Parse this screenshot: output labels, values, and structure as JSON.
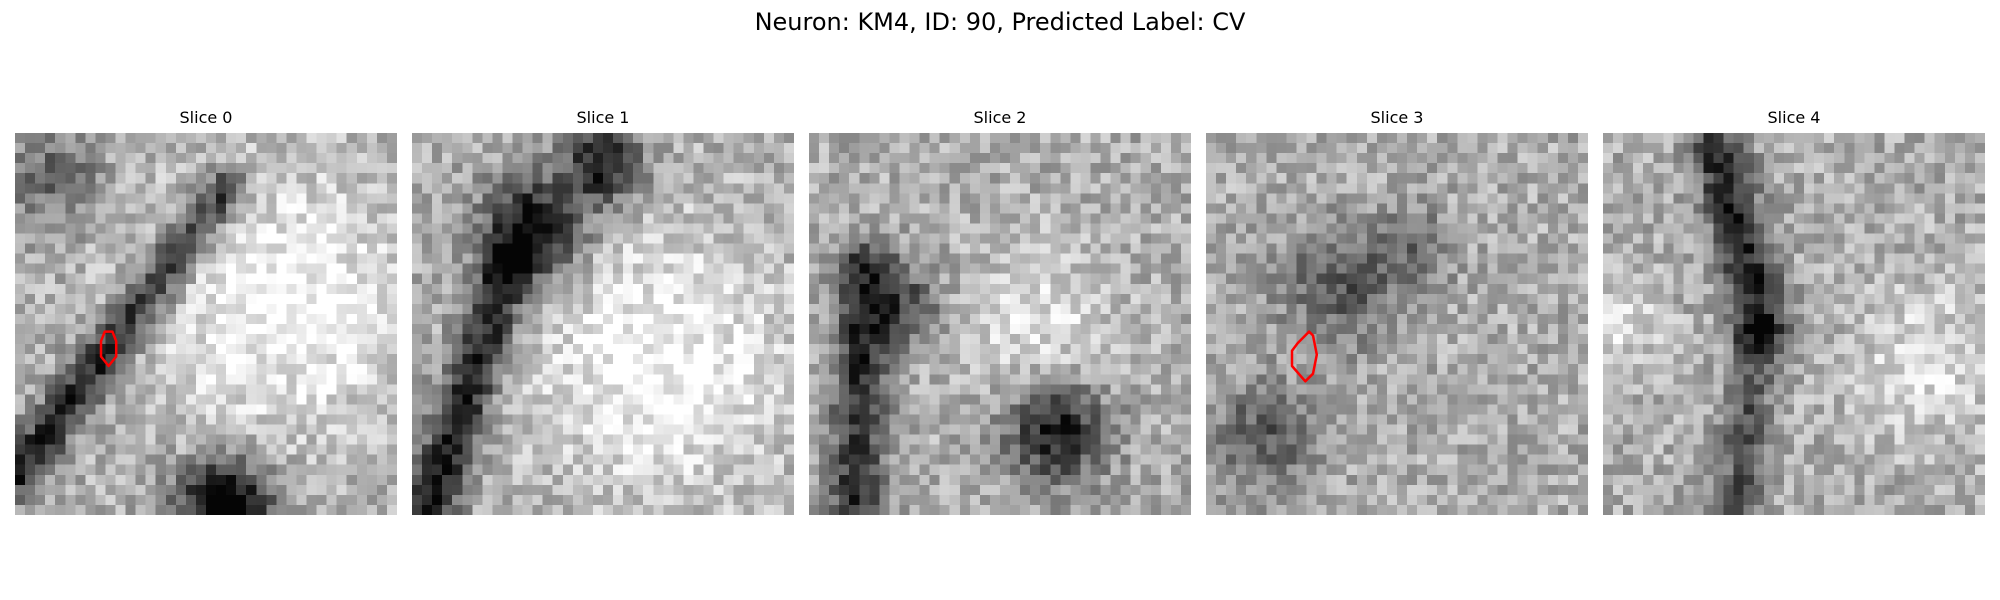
{
  "figure": {
    "title": "Neuron: KM4, ID: 90, Predicted Label: CV"
  },
  "slices": [
    {
      "title": "Slice 0",
      "seed": 11,
      "dark_features": [
        {
          "kind": "line",
          "p1": [
            0.0,
            0.9
          ],
          "p2": [
            0.55,
            0.15
          ],
          "width": 0.06,
          "strength": 0.55
        },
        {
          "kind": "blob",
          "center": [
            0.55,
            0.98
          ],
          "radius": 0.12,
          "strength": 0.85
        },
        {
          "kind": "blob",
          "center": [
            0.1,
            0.12
          ],
          "radius": 0.12,
          "strength": 0.3
        }
      ],
      "light_features": [
        {
          "kind": "blob",
          "center": [
            0.7,
            0.45
          ],
          "radius": 0.35,
          "strength": 0.3
        }
      ],
      "contour": [
        [
          0.235,
          0.52
        ],
        [
          0.255,
          0.52
        ],
        [
          0.265,
          0.545
        ],
        [
          0.265,
          0.585
        ],
        [
          0.245,
          0.61
        ],
        [
          0.225,
          0.585
        ],
        [
          0.225,
          0.545
        ]
      ]
    },
    {
      "title": "Slice 1",
      "seed": 23,
      "dark_features": [
        {
          "kind": "line",
          "p1": [
            0.05,
            0.98
          ],
          "p2": [
            0.25,
            0.35
          ],
          "width": 0.07,
          "strength": 0.6
        },
        {
          "kind": "blob",
          "center": [
            0.32,
            0.25
          ],
          "radius": 0.13,
          "strength": 0.7
        },
        {
          "kind": "blob",
          "center": [
            0.5,
            0.08
          ],
          "radius": 0.1,
          "strength": 0.6
        }
      ],
      "light_features": [
        {
          "kind": "blob",
          "center": [
            0.65,
            0.6
          ],
          "radius": 0.35,
          "strength": 0.3
        }
      ],
      "contour": []
    },
    {
      "title": "Slice 2",
      "seed": 37,
      "dark_features": [
        {
          "kind": "line",
          "p1": [
            0.12,
            0.95
          ],
          "p2": [
            0.15,
            0.35
          ],
          "width": 0.07,
          "strength": 0.5
        },
        {
          "kind": "blob",
          "center": [
            0.65,
            0.78
          ],
          "radius": 0.13,
          "strength": 0.6
        },
        {
          "kind": "blob",
          "center": [
            0.25,
            0.45
          ],
          "radius": 0.1,
          "strength": 0.4
        }
      ],
      "light_features": [
        {
          "kind": "blob",
          "center": [
            0.6,
            0.5
          ],
          "radius": 0.2,
          "strength": 0.2
        }
      ],
      "contour": []
    },
    {
      "title": "Slice 3",
      "seed": 53,
      "dark_features": [
        {
          "kind": "blob",
          "center": [
            0.35,
            0.4
          ],
          "radius": 0.15,
          "strength": 0.35
        },
        {
          "kind": "blob",
          "center": [
            0.15,
            0.8
          ],
          "radius": 0.14,
          "strength": 0.35
        },
        {
          "kind": "blob",
          "center": [
            0.55,
            0.3
          ],
          "radius": 0.1,
          "strength": 0.25
        }
      ],
      "light_features": [],
      "contour": [
        [
          0.27,
          0.52
        ],
        [
          0.28,
          0.53
        ],
        [
          0.29,
          0.58
        ],
        [
          0.28,
          0.63
        ],
        [
          0.26,
          0.65
        ],
        [
          0.225,
          0.61
        ],
        [
          0.225,
          0.57
        ],
        [
          0.24,
          0.55
        ]
      ]
    },
    {
      "title": "Slice 4",
      "seed": 71,
      "dark_features": [
        {
          "kind": "line",
          "p1": [
            0.3,
            0.05
          ],
          "p2": [
            0.42,
            0.5
          ],
          "width": 0.07,
          "strength": 0.55
        },
        {
          "kind": "line",
          "p1": [
            0.4,
            0.55
          ],
          "p2": [
            0.35,
            0.98
          ],
          "width": 0.06,
          "strength": 0.35
        }
      ],
      "light_features": [
        {
          "kind": "blob",
          "center": [
            0.85,
            0.6
          ],
          "radius": 0.2,
          "strength": 0.2
        },
        {
          "kind": "blob",
          "center": [
            0.05,
            0.5
          ],
          "radius": 0.1,
          "strength": 0.2
        }
      ],
      "contour": []
    }
  ],
  "colors": {
    "contour": "#ff0000",
    "background": "#ffffff"
  }
}
